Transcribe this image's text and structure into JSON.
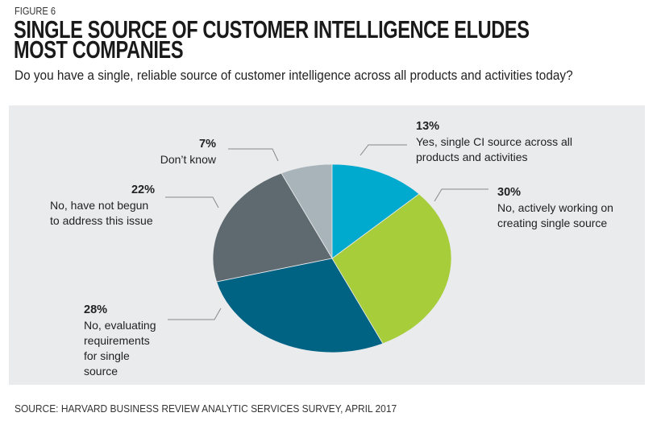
{
  "figure_label": "FIGURE 6",
  "chart_data": {
    "type": "pie",
    "title": "SINGLE SOURCE OF CUSTOMER INTELLIGENCE ELUDES MOST COMPANIES",
    "subtitle": "Do you have a single, reliable source of customer intelligence across all products and activities today?",
    "slices": [
      {
        "label": "Yes, single CI source across all products and activities",
        "value": 13,
        "value_label": "13%",
        "color": "#00a9ce"
      },
      {
        "label": "No, actively working on creating single source",
        "value": 30,
        "value_label": "30%",
        "color": "#a7cd3a"
      },
      {
        "label": "No, evaluating requirements for single source",
        "value": 28,
        "value_label": "28%",
        "color": "#006384"
      },
      {
        "label": "No, have not begun to address this issue",
        "value": 22,
        "value_label": "22%",
        "color": "#5f6a70"
      },
      {
        "label": "Don’t know",
        "value": 7,
        "value_label": "7%",
        "color": "#a9b4ba"
      }
    ],
    "background": "#e9ebed"
  },
  "source": "SOURCE: HARVARD BUSINESS REVIEW ANALYTIC SERVICES SURVEY, APRIL 2017"
}
